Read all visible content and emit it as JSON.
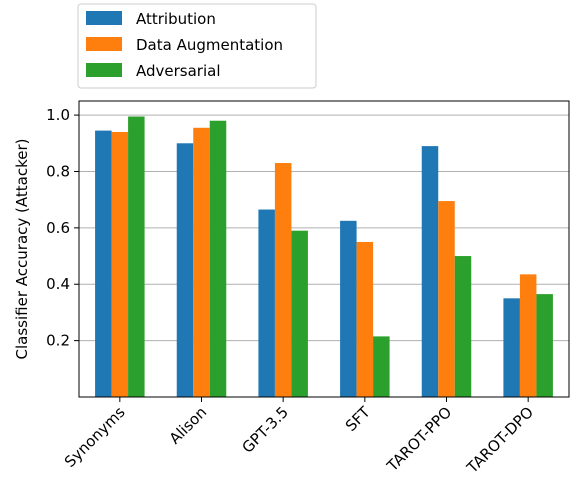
{
  "chart_data": {
    "type": "bar",
    "categories": [
      "Synonyms",
      "Alison",
      "GPT-3.5",
      "SFT",
      "TAROT-PPO",
      "TAROT-DPO"
    ],
    "series": [
      {
        "name": "Attribution",
        "color": "#1f77b4",
        "values": [
          0.945,
          0.9,
          0.665,
          0.625,
          0.89,
          0.35
        ]
      },
      {
        "name": "Data Augmentation",
        "color": "#ff7f0e",
        "values": [
          0.94,
          0.955,
          0.83,
          0.55,
          0.695,
          0.435
        ]
      },
      {
        "name": "Adversarial",
        "color": "#2ca02c",
        "values": [
          0.995,
          0.98,
          0.59,
          0.215,
          0.5,
          0.365
        ]
      }
    ],
    "ylabel": "Classifier Accuracy (Attacker)",
    "xlabel": "",
    "ylim": [
      0,
      1.0
    ],
    "yticks": [
      0.2,
      0.4,
      0.6,
      0.8,
      1.0
    ],
    "ytick_labels": [
      "0.2",
      "0.4",
      "0.6",
      "0.8",
      "1.0"
    ],
    "grid": "horizontal",
    "legend_position": "top-left, outside"
  }
}
